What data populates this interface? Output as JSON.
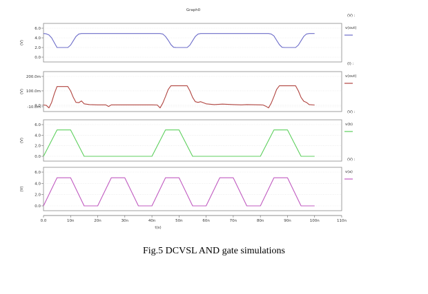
{
  "figure": {
    "graph_title": "Graph0",
    "caption": "Fig.5 DCVSL AND gate simulations"
  },
  "chart_data": [
    {
      "type": "line",
      "ylabel": "(V)",
      "ylim": [
        0,
        6.0
      ],
      "yticks": [
        0,
        2.0,
        4.0,
        6.0
      ],
      "ytick_labels": [
        "0.0",
        "2.0",
        "4.0",
        "6.0"
      ],
      "legend_header": "(V) :",
      "series": [
        {
          "name": "v(out)",
          "color": "#6b6bc8",
          "x": [
            0,
            1,
            2,
            3,
            4,
            5,
            9,
            10,
            11,
            12,
            13,
            14,
            43,
            44,
            45,
            46,
            47,
            48,
            49,
            53,
            54,
            55,
            56,
            57,
            58,
            59,
            83,
            84,
            85,
            86,
            87,
            88,
            89,
            93,
            94,
            95,
            96,
            97,
            98,
            99,
            100
          ],
          "y": [
            4.9,
            4.85,
            4.6,
            4.0,
            3.0,
            2.0,
            2.0,
            2.5,
            3.4,
            4.3,
            4.8,
            4.9,
            4.9,
            4.8,
            4.3,
            3.5,
            2.6,
            2.05,
            2.0,
            2.0,
            2.5,
            3.4,
            4.3,
            4.8,
            4.9,
            4.9,
            4.9,
            4.8,
            4.4,
            3.5,
            2.6,
            2.05,
            2.0,
            2.0,
            2.5,
            3.4,
            4.3,
            4.8,
            4.9,
            4.9,
            4.9
          ]
        }
      ]
    },
    {
      "type": "line",
      "ylabel": "(V)",
      "ylim": [
        -10,
        200
      ],
      "yticks": [
        -10,
        0,
        100,
        200
      ],
      "ytick_labels": [
        "-10.0m",
        "0.0",
        "100.0m",
        "200.0m"
      ],
      "legend_header": "(I) :",
      "series": [
        {
          "name": "v(out)",
          "color": "#b0433e",
          "x": [
            0,
            1,
            2,
            3,
            4,
            5,
            9,
            10,
            11,
            12,
            13,
            14,
            15,
            17,
            20,
            23,
            24,
            25,
            30,
            35,
            40,
            42,
            43,
            44,
            45,
            46,
            47,
            48,
            49,
            53,
            54,
            55,
            56,
            57,
            58,
            60,
            63,
            66,
            70,
            73,
            75,
            80,
            81,
            82,
            83,
            84,
            85,
            86,
            87,
            88,
            89,
            93,
            94,
            95,
            96,
            97,
            98,
            100
          ],
          "y": [
            2,
            0,
            -18,
            20,
            80,
            130,
            130,
            100,
            55,
            20,
            18,
            30,
            10,
            5,
            3,
            3,
            -8,
            3,
            3,
            3,
            3,
            2,
            -18,
            15,
            60,
            110,
            135,
            135,
            135,
            135,
            100,
            55,
            25,
            20,
            25,
            10,
            5,
            8,
            5,
            3,
            5,
            3,
            2,
            -6,
            -18,
            15,
            60,
            110,
            135,
            135,
            135,
            135,
            100,
            55,
            28,
            20,
            5,
            2
          ]
        }
      ]
    },
    {
      "type": "line",
      "ylabel": "(V)",
      "ylim": [
        0,
        6.0
      ],
      "yticks": [
        0,
        2.0,
        4.0,
        6.0
      ],
      "ytick_labels": [
        "0.0",
        "2.0",
        "4.0",
        "6.0"
      ],
      "legend_header": "(V) :",
      "series": [
        {
          "name": "v(b)",
          "color": "#5ccf5c",
          "x": [
            0,
            5,
            10,
            15,
            40,
            45,
            50,
            55,
            80,
            85,
            90,
            95,
            100
          ],
          "y": [
            0,
            5,
            5,
            0,
            0,
            5,
            5,
            0,
            0,
            5,
            5,
            0,
            0
          ]
        }
      ]
    },
    {
      "type": "line",
      "ylabel": "(V)",
      "ylim": [
        0,
        6.0
      ],
      "yticks": [
        0,
        2.0,
        4.0,
        6.0
      ],
      "ytick_labels": [
        "0.0",
        "2.0",
        "4.0",
        "6.0"
      ],
      "legend_header": "(V) :",
      "series": [
        {
          "name": "v(a)",
          "color": "#c05ac0",
          "x": [
            0,
            5,
            10,
            15,
            20,
            25,
            30,
            35,
            40,
            45,
            50,
            55,
            60,
            65,
            70,
            75,
            80,
            85,
            90,
            95,
            100
          ],
          "y": [
            0,
            5,
            5,
            0,
            0,
            5,
            5,
            0,
            0,
            5,
            5,
            0,
            0,
            5,
            5,
            0,
            0,
            5,
            5,
            0,
            0
          ]
        }
      ]
    }
  ],
  "x_axis": {
    "xlabel": "t(s)",
    "xlim": [
      0,
      110
    ],
    "ticks": [
      0,
      10,
      20,
      30,
      40,
      50,
      60,
      70,
      80,
      90,
      100,
      110
    ],
    "tick_labels": [
      "0.0",
      "10n",
      "20n",
      "30n",
      "40n",
      "50n",
      "60n",
      "70n",
      "80n",
      "90n",
      "100n",
      "110n"
    ]
  }
}
